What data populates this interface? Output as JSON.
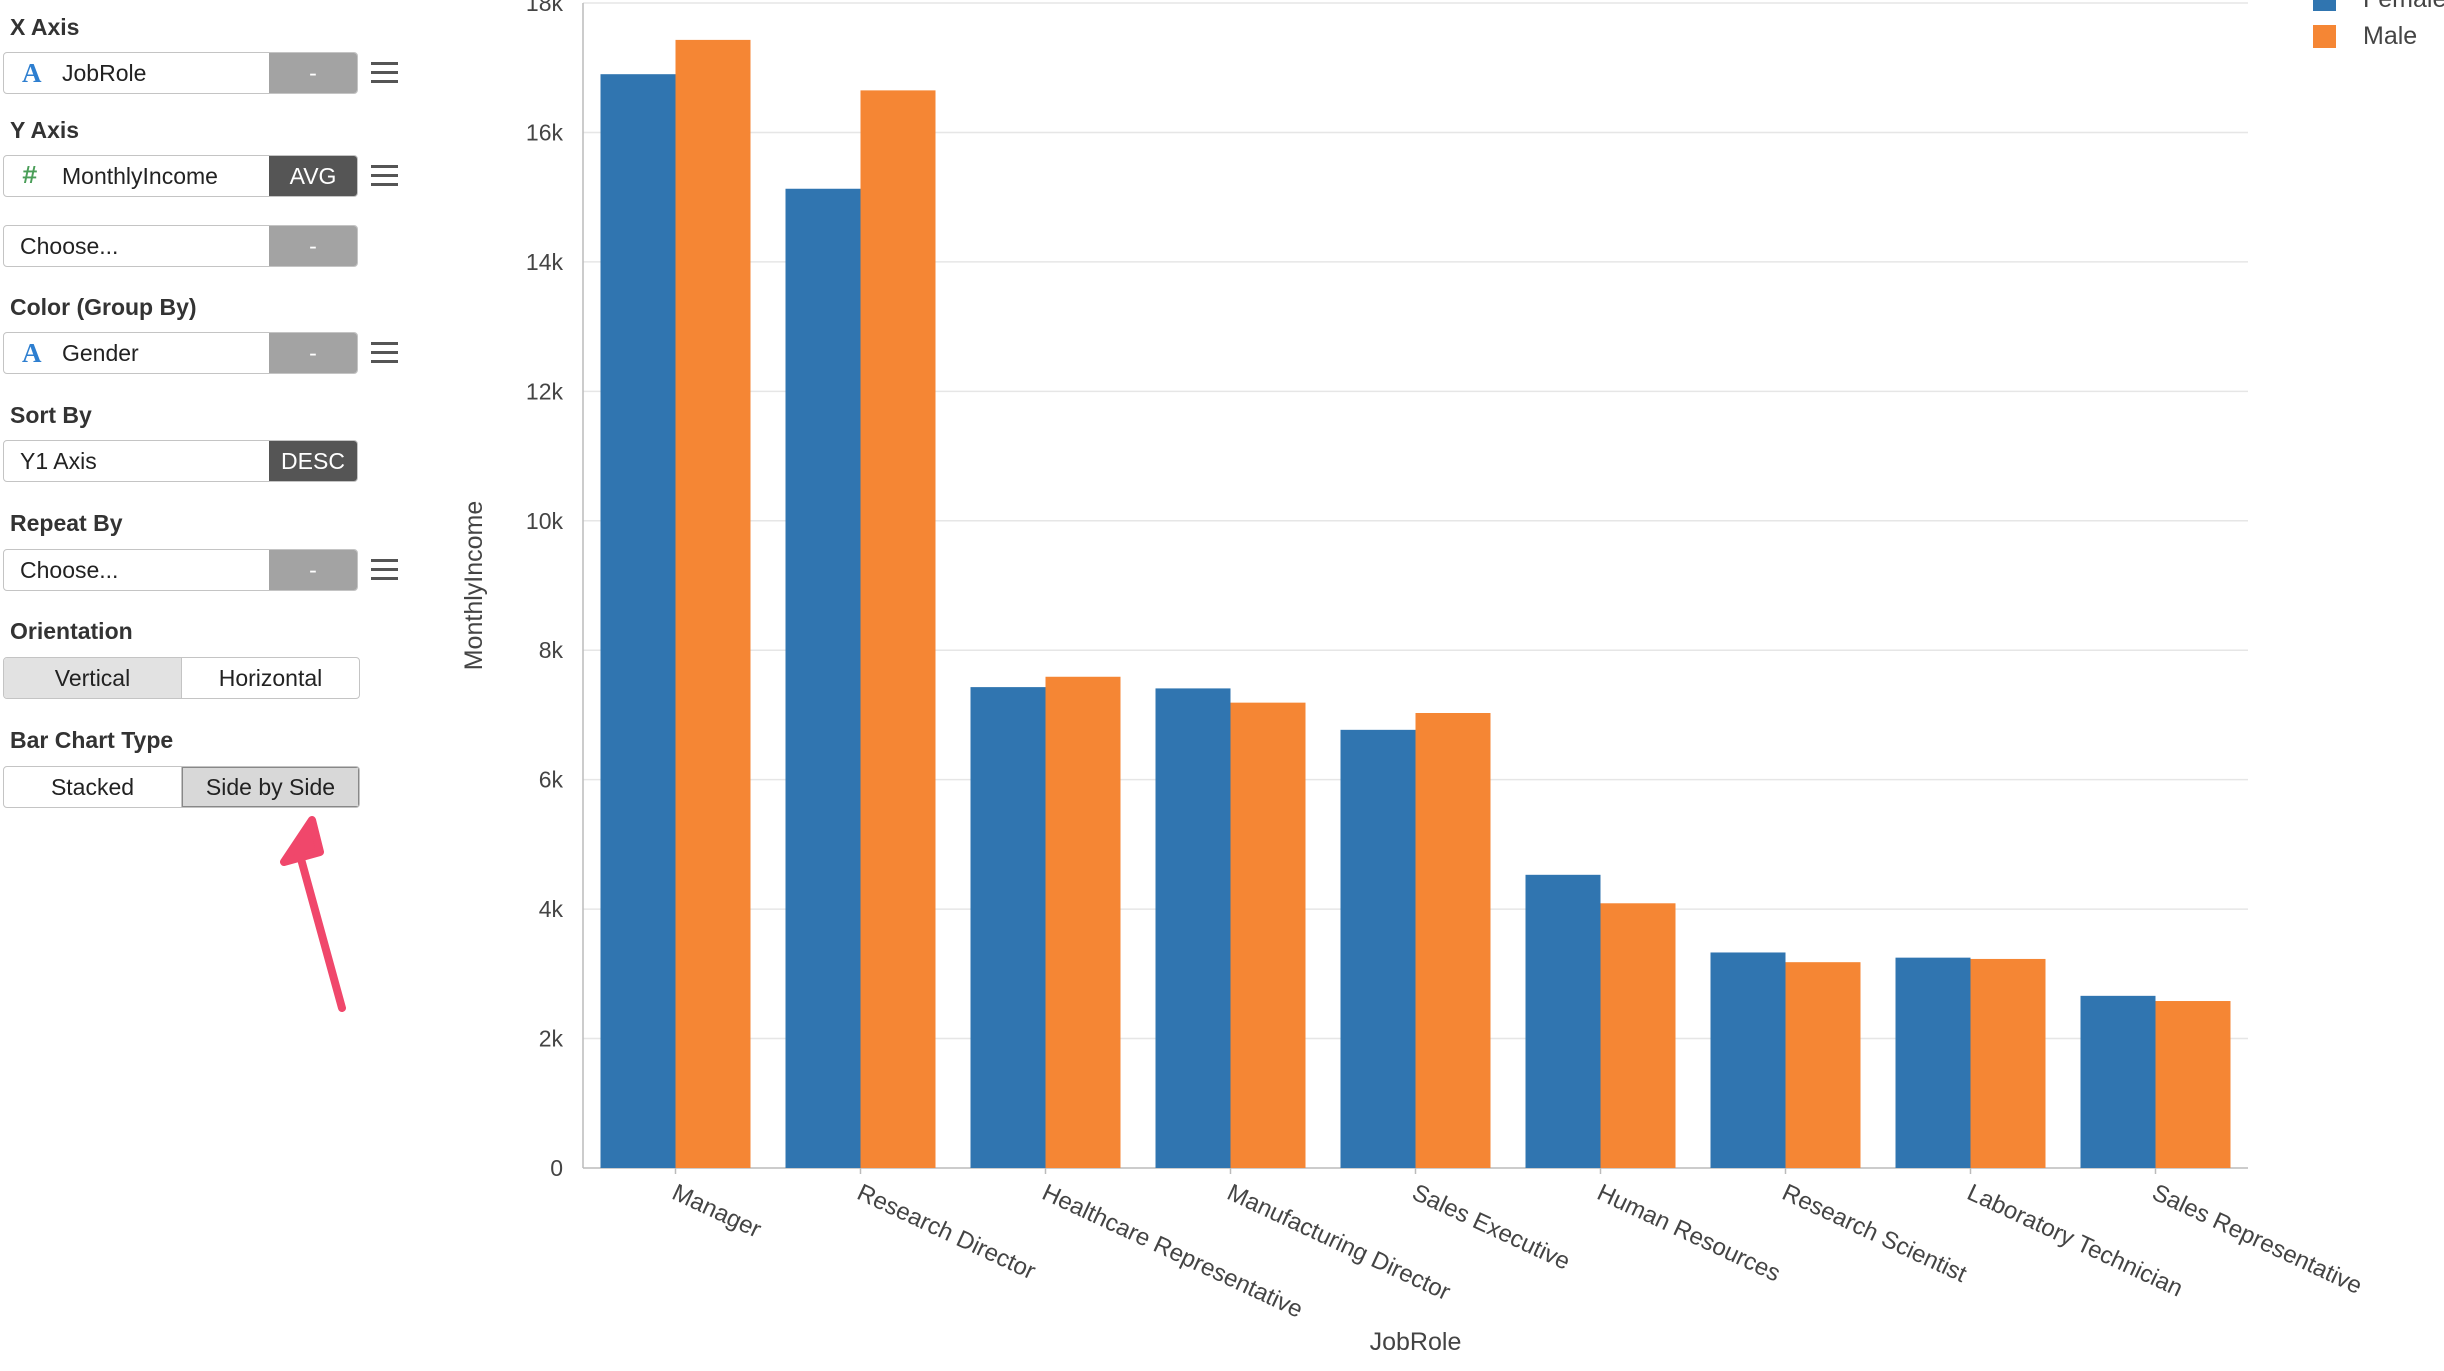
{
  "sidebar": {
    "x_axis": {
      "label": "X Axis",
      "type_icon": "A",
      "field": "JobRole",
      "agg": "-"
    },
    "y_axis": {
      "label": "Y Axis",
      "type_icon": "#",
      "field": "MonthlyIncome",
      "agg": "AVG"
    },
    "y_axis_2": {
      "placeholder": "Choose...",
      "agg": "-"
    },
    "color": {
      "label": "Color (Group By)",
      "type_icon": "A",
      "field": "Gender",
      "agg": "-"
    },
    "sort": {
      "label": "Sort By",
      "field": "Y1 Axis",
      "order": "DESC"
    },
    "repeat": {
      "label": "Repeat By",
      "placeholder": "Choose...",
      "agg": "-"
    },
    "orientation": {
      "label": "Orientation",
      "options": [
        "Vertical",
        "Horizontal"
      ],
      "selected": "Vertical"
    },
    "bar_type": {
      "label": "Bar Chart Type",
      "options": [
        "Stacked",
        "Side by Side"
      ],
      "selected": "Side by Side"
    }
  },
  "annotation": {
    "arrow_color": "#f0476b",
    "points_to": "Side by Side"
  },
  "chart_data": {
    "type": "bar",
    "orientation": "vertical",
    "mode": "side-by-side",
    "categories": [
      "Manager",
      "Research Director",
      "Healthcare Representative",
      "Manufacturing Director",
      "Sales Executive",
      "Human Resources",
      "Research Scientist",
      "Laboratory Technician",
      "Sales Representative"
    ],
    "series": [
      {
        "name": "Female",
        "color": "#3075b0",
        "values": [
          16900,
          15130,
          7430,
          7410,
          6770,
          4530,
          3330,
          3250,
          2660
        ]
      },
      {
        "name": "Male",
        "color": "#f58634",
        "values": [
          17430,
          16650,
          7590,
          7190,
          7030,
          4090,
          3180,
          3230,
          2580
        ]
      }
    ],
    "xlabel": "JobRole",
    "ylabel": "MonthlyIncome",
    "ylim": [
      0,
      18000
    ],
    "yticks": [
      "0",
      "2k",
      "4k",
      "6k",
      "8k",
      "10k",
      "12k",
      "14k",
      "16k",
      "18k"
    ],
    "grid": true,
    "legend_position": "top-right"
  }
}
